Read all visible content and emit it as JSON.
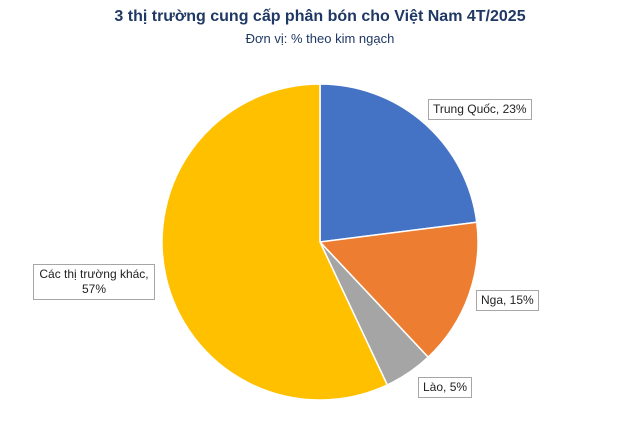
{
  "chart_data": {
    "type": "pie",
    "title": "3 thị trường cung cấp phân bón cho Việt Nam 4T/2025",
    "subtitle": "Đơn vị: % theo kim ngạch",
    "values": [
      23,
      15,
      5,
      57
    ],
    "value_labels": [
      "Trung Quốc, 23%",
      "Nga, 15%",
      "Lào, 5%",
      "Các thị trường khác, 57%"
    ],
    "colors": [
      "#4472c4",
      "#ed7d31",
      "#a5a5a5",
      "#ffc000"
    ]
  }
}
